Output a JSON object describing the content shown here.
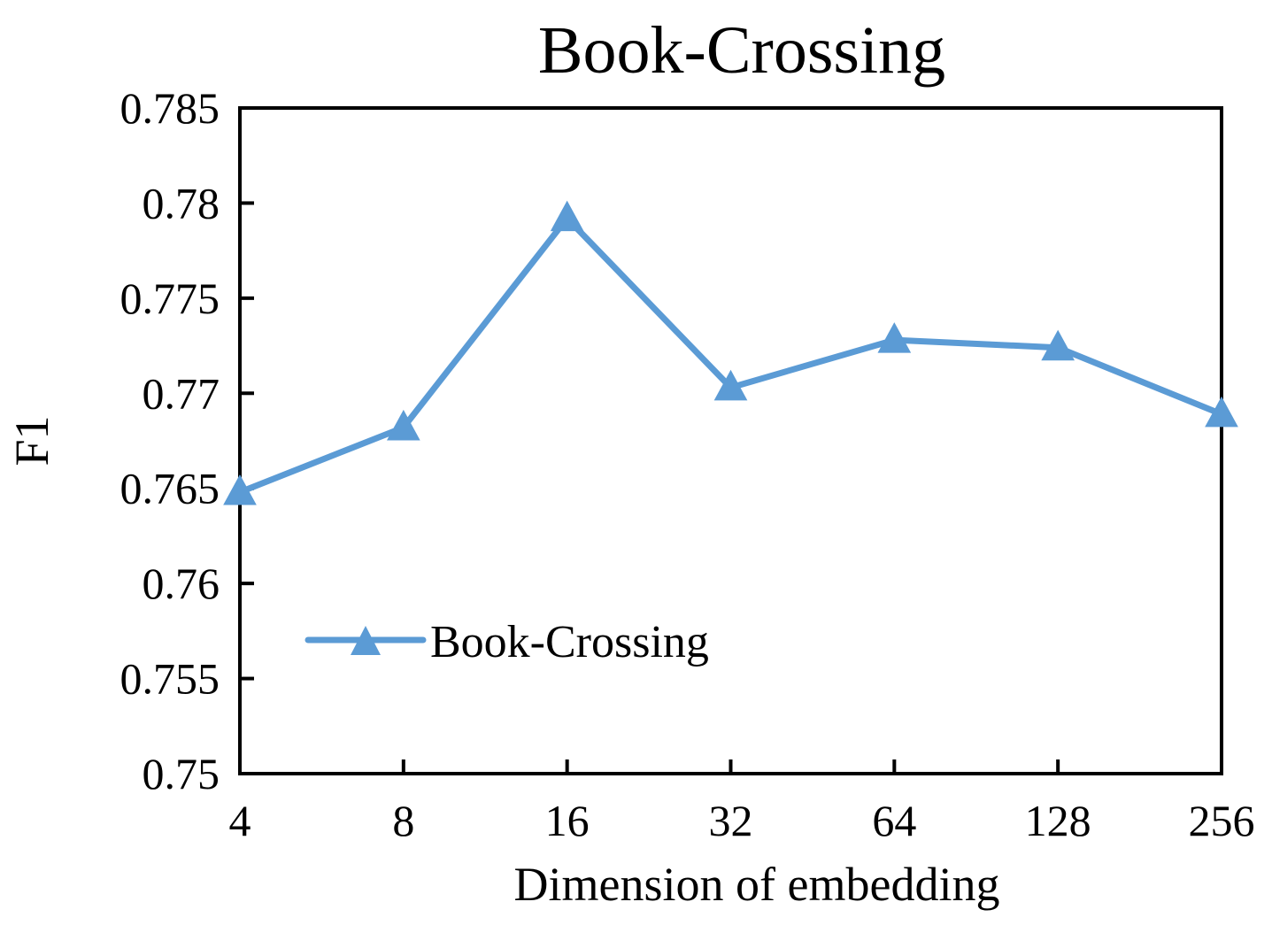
{
  "chart_data": {
    "type": "line",
    "title": "Book-Crossing",
    "xlabel": "Dimension of embedding",
    "ylabel": "F1",
    "categories": [
      "4",
      "8",
      "16",
      "32",
      "64",
      "128",
      "256"
    ],
    "yticks": [
      "0.75",
      "0.755",
      "0.76",
      "0.765",
      "0.77",
      "0.775",
      "0.78",
      "0.785"
    ],
    "ylim": [
      0.75,
      0.785
    ],
    "grid": false,
    "legend_position": "lower-left",
    "series": [
      {
        "name": "Book-Crossing",
        "color": "#5b9bd5",
        "marker": "triangle",
        "values": [
          0.7648,
          0.7682,
          0.7792,
          0.7703,
          0.7728,
          0.7724,
          0.7689
        ]
      }
    ]
  }
}
